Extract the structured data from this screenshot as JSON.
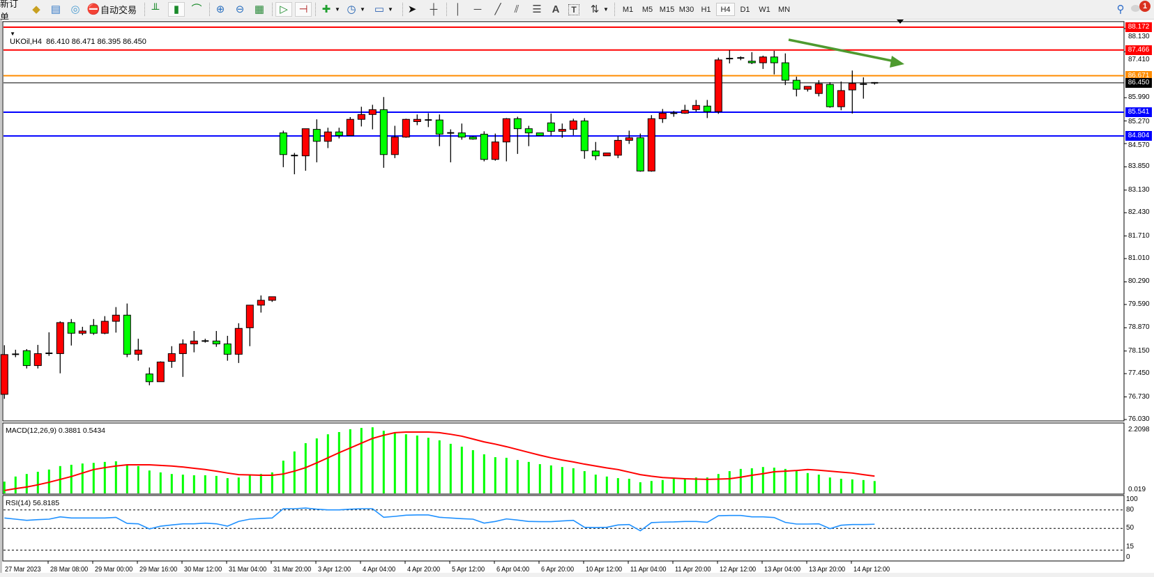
{
  "toolbar": {
    "new_order_label": "新订单",
    "auto_trading_label": "自动交易",
    "timeframes": [
      "M1",
      "M5",
      "M15",
      "M30",
      "H1",
      "H4",
      "D1",
      "W1",
      "MN"
    ],
    "active_timeframe": "H4",
    "notification_count": "1",
    "text_tool_label": "A",
    "label_tool_label": "T"
  },
  "chart": {
    "header": "UKOil,H4  86.410 86.471 86.395 86.450",
    "bull_color": "#ff0000",
    "bear_color": "#00ff00",
    "arrow_color": "#4e9a2f"
  },
  "chart_data": [
    {
      "type": "candlestick",
      "symbol": "UKOil",
      "timeframe": "H4",
      "last_ohlc": {
        "open": "86.410",
        "high": "86.471",
        "low": "86.395",
        "close": "86.450"
      },
      "ylim": [
        76.03,
        88.172
      ],
      "y_ticks": [
        "88.130",
        "87.410",
        "85.990",
        "85.270",
        "84.570",
        "83.850",
        "83.130",
        "82.430",
        "81.710",
        "81.010",
        "80.290",
        "79.590",
        "78.870",
        "78.150",
        "77.450",
        "76.730",
        "76.030"
      ],
      "x_labels": [
        "27 Mar 2023",
        "28 Mar 08:00",
        "29 Mar 00:00",
        "29 Mar 16:00",
        "30 Mar 12:00",
        "31 Mar 04:00",
        "31 Mar 20:00",
        "3 Apr 12:00",
        "4 Apr 04:00",
        "4 Apr 20:00",
        "5 Apr 12:00",
        "6 Apr 04:00",
        "6 Apr 20:00",
        "10 Apr 12:00",
        "11 Apr 04:00",
        "11 Apr 20:00",
        "12 Apr 12:00",
        "13 Apr 04:00",
        "13 Apr 20:00",
        "14 Apr 12:00"
      ],
      "horizontal_lines": [
        {
          "price": "88.172",
          "color": "#ff0000"
        },
        {
          "price": "87.466",
          "color": "#ff0000"
        },
        {
          "price": "86.671",
          "color": "#ff8c00"
        },
        {
          "price": "86.450",
          "color": "#000000"
        },
        {
          "price": "85.541",
          "color": "#0000ff"
        },
        {
          "price": "84.804",
          "color": "#0000ff"
        }
      ],
      "ohlc": [
        [
          76.81,
          78.33,
          76.67,
          78.04
        ],
        [
          78.04,
          78.19,
          77.96,
          78.05
        ],
        [
          78.16,
          78.21,
          77.61,
          77.7
        ],
        [
          77.7,
          78.34,
          77.61,
          78.07
        ],
        [
          78.07,
          78.73,
          78.0,
          78.08
        ],
        [
          78.07,
          79.07,
          77.46,
          79.03
        ],
        [
          79.03,
          79.14,
          78.32,
          78.7
        ],
        [
          78.7,
          78.9,
          78.64,
          78.77
        ],
        [
          78.94,
          79.14,
          78.65,
          78.7
        ],
        [
          78.7,
          79.23,
          78.67,
          79.07
        ],
        [
          79.07,
          79.51,
          78.72,
          79.26
        ],
        [
          79.26,
          79.62,
          77.96,
          78.05
        ],
        [
          78.05,
          78.53,
          77.85,
          78.18
        ],
        [
          77.44,
          77.64,
          77.09,
          77.2
        ],
        [
          77.2,
          77.83,
          77.2,
          77.81
        ],
        [
          77.83,
          78.3,
          77.63,
          78.07
        ],
        [
          78.07,
          78.51,
          77.35,
          78.37
        ],
        [
          78.37,
          78.77,
          78.11,
          78.46
        ],
        [
          78.46,
          78.53,
          78.41,
          78.46
        ],
        [
          78.46,
          78.77,
          78.28,
          78.37
        ],
        [
          78.37,
          78.62,
          77.85,
          78.05
        ],
        [
          78.05,
          79.01,
          77.78,
          78.85
        ],
        [
          78.87,
          79.57,
          78.3,
          79.57
        ],
        [
          79.57,
          79.87,
          79.34,
          79.72
        ],
        [
          79.72,
          79.83,
          79.67,
          79.83
        ],
        [
          84.9,
          84.97,
          83.84,
          84.23
        ],
        [
          84.2,
          84.28,
          83.62,
          84.2
        ],
        [
          84.19,
          85.03,
          83.73,
          85.03
        ],
        [
          85.01,
          85.32,
          83.99,
          84.64
        ],
        [
          84.64,
          85.06,
          84.43,
          84.93
        ],
        [
          84.93,
          85.06,
          84.73,
          84.82
        ],
        [
          84.82,
          85.39,
          84.82,
          85.32
        ],
        [
          85.32,
          85.71,
          85.1,
          85.47
        ],
        [
          85.47,
          85.77,
          85.01,
          85.62
        ],
        [
          85.62,
          86.01,
          83.82,
          84.23
        ],
        [
          84.23,
          85.12,
          84.12,
          84.77
        ],
        [
          84.77,
          85.34,
          84.75,
          85.32
        ],
        [
          85.25,
          85.47,
          85.14,
          85.32
        ],
        [
          85.3,
          85.51,
          85.08,
          85.3
        ],
        [
          85.3,
          85.47,
          84.49,
          84.86
        ],
        [
          84.86,
          85.01,
          83.99,
          84.9
        ],
        [
          84.9,
          85.19,
          84.69,
          84.77
        ],
        [
          84.77,
          84.8,
          84.69,
          84.71
        ],
        [
          84.86,
          84.95,
          84.02,
          84.08
        ],
        [
          84.08,
          84.88,
          84.04,
          84.62
        ],
        [
          84.62,
          85.36,
          84.02,
          85.34
        ],
        [
          85.34,
          85.4,
          84.25,
          85.03
        ],
        [
          85.03,
          85.12,
          84.49,
          84.9
        ],
        [
          84.9,
          84.9,
          84.82,
          84.82
        ],
        [
          85.21,
          85.5,
          84.82,
          84.95
        ],
        [
          84.95,
          85.19,
          84.75,
          85.01
        ],
        [
          85.01,
          85.34,
          84.83,
          85.27
        ],
        [
          85.27,
          85.36,
          84.1,
          84.35
        ],
        [
          84.34,
          84.62,
          84.06,
          84.19
        ],
        [
          84.19,
          84.28,
          84.19,
          84.28
        ],
        [
          84.21,
          84.8,
          84.12,
          84.67
        ],
        [
          84.67,
          84.97,
          84.56,
          84.75
        ],
        [
          84.75,
          84.88,
          83.7,
          83.72
        ],
        [
          83.72,
          85.45,
          83.7,
          85.34
        ],
        [
          85.34,
          85.64,
          85.21,
          85.51
        ],
        [
          85.5,
          85.58,
          85.4,
          85.51
        ],
        [
          85.51,
          85.77,
          85.49,
          85.6
        ],
        [
          85.62,
          85.92,
          85.56,
          85.75
        ],
        [
          85.73,
          85.92,
          85.36,
          85.56
        ],
        [
          85.56,
          87.23,
          85.49,
          87.16
        ],
        [
          87.2,
          87.46,
          87.05,
          87.2
        ],
        [
          87.22,
          87.27,
          87.15,
          87.22
        ],
        [
          87.12,
          87.4,
          87.03,
          87.07
        ],
        [
          87.07,
          87.29,
          86.88,
          87.25
        ],
        [
          87.25,
          87.44,
          86.71,
          87.07
        ],
        [
          87.07,
          87.36,
          86.38,
          86.53
        ],
        [
          86.53,
          86.64,
          86.03,
          86.25
        ],
        [
          86.25,
          86.34,
          86.18,
          86.34
        ],
        [
          86.12,
          86.53,
          86.03,
          86.42
        ],
        [
          86.4,
          86.47,
          85.68,
          85.71
        ],
        [
          85.71,
          86.49,
          85.6,
          86.21
        ],
        [
          86.23,
          86.83,
          85.5,
          86.43
        ],
        [
          86.43,
          86.62,
          85.96,
          86.41
        ],
        [
          86.41,
          86.471,
          86.395,
          86.45
        ]
      ]
    },
    {
      "type": "bar",
      "title": "MACD(12,26,9) 0.3881 0.5434",
      "y_labels": [
        "2.2098",
        "0.019"
      ],
      "ylim": [
        0.019,
        2.2098
      ],
      "histogram_color": "#00ff00",
      "signal_color": "#ff0000",
      "histogram": [
        0.37,
        0.53,
        0.61,
        0.68,
        0.75,
        0.86,
        0.9,
        0.94,
        0.96,
        0.99,
        1.01,
        0.9,
        0.86,
        0.72,
        0.66,
        0.61,
        0.59,
        0.57,
        0.57,
        0.55,
        0.48,
        0.5,
        0.57,
        0.61,
        0.66,
        1.03,
        1.32,
        1.58,
        1.73,
        1.86,
        1.93,
        2.02,
        2.06,
        2.08,
        1.97,
        1.91,
        1.86,
        1.82,
        1.75,
        1.67,
        1.56,
        1.47,
        1.36,
        1.23,
        1.14,
        1.12,
        1.05,
        0.99,
        0.92,
        0.88,
        0.83,
        0.79,
        0.7,
        0.59,
        0.53,
        0.48,
        0.46,
        0.35,
        0.39,
        0.42,
        0.46,
        0.48,
        0.5,
        0.5,
        0.61,
        0.7,
        0.77,
        0.79,
        0.83,
        0.81,
        0.77,
        0.7,
        0.64,
        0.59,
        0.5,
        0.46,
        0.44,
        0.42,
        0.3881
      ],
      "signal": [
        0.09,
        0.15,
        0.2,
        0.27,
        0.35,
        0.44,
        0.53,
        0.64,
        0.75,
        0.81,
        0.86,
        0.9,
        0.9,
        0.9,
        0.88,
        0.86,
        0.83,
        0.79,
        0.75,
        0.7,
        0.64,
        0.59,
        0.58,
        0.57,
        0.57,
        0.61,
        0.7,
        0.81,
        0.96,
        1.12,
        1.28,
        1.43,
        1.58,
        1.73,
        1.83,
        1.91,
        1.93,
        1.93,
        1.93,
        1.91,
        1.86,
        1.8,
        1.71,
        1.62,
        1.55,
        1.47,
        1.38,
        1.29,
        1.2,
        1.12,
        1.05,
        0.99,
        0.92,
        0.86,
        0.8,
        0.75,
        0.67,
        0.59,
        0.54,
        0.5,
        0.48,
        0.46,
        0.45,
        0.44,
        0.45,
        0.46,
        0.51,
        0.57,
        0.62,
        0.68,
        0.7,
        0.72,
        0.75,
        0.73,
        0.7,
        0.67,
        0.64,
        0.59,
        0.5434
      ]
    },
    {
      "type": "line",
      "title": "RSI(14) 56.8185",
      "ylim": [
        0,
        100
      ],
      "y_labels": [
        "100",
        "80",
        "50",
        "15",
        "0"
      ],
      "levels": [
        80,
        50,
        15
      ],
      "line_color": "#1e90ff",
      "values": [
        66.9,
        65.0,
        63.1,
        64.2,
        65.0,
        68.7,
        66.9,
        66.9,
        66.9,
        66.9,
        67.9,
        58.2,
        57.5,
        49.2,
        53.7,
        55.6,
        57.5,
        57.5,
        58.6,
        57.5,
        53.7,
        61.3,
        65.0,
        66.1,
        66.9,
        81.9,
        81.9,
        83.0,
        81.1,
        80.0,
        80.0,
        81.1,
        81.9,
        81.9,
        68.0,
        69.5,
        71.4,
        71.8,
        71.8,
        68.0,
        66.9,
        65.8,
        65.0,
        58.6,
        61.3,
        65.4,
        63.5,
        61.3,
        61.0,
        61.0,
        62.1,
        63.1,
        51.8,
        51.4,
        51.8,
        55.6,
        56.3,
        46.2,
        59.4,
        60.2,
        60.5,
        61.3,
        61.3,
        59.8,
        70.6,
        71.0,
        71.0,
        68.7,
        68.7,
        67.6,
        59.8,
        57.1,
        57.1,
        57.5,
        49.6,
        55.2,
        56.3,
        56.3,
        56.8185
      ]
    }
  ]
}
